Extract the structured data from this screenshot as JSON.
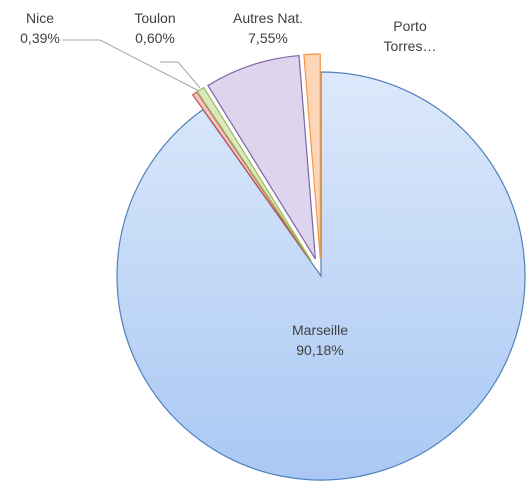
{
  "chart_data": {
    "type": "pie",
    "categories": [
      "Marseille",
      "Nice",
      "Toulon",
      "Autres Nat.",
      "Porto Torres…"
    ],
    "values": [
      90.18,
      0.39,
      0.6,
      7.55,
      1.28
    ],
    "value_labels": [
      "90,18%",
      "0,39%",
      "0,60%",
      "7,55%",
      null
    ],
    "colors": [
      "#c6dbf8",
      "#f4c7c6",
      "#dbe8c1",
      "#ddd4ee",
      "#fcd6b6"
    ],
    "strokes": [
      "#4f81bd",
      "#c0504d",
      "#9bbb59",
      "#8064a2",
      "#f79646"
    ]
  }
}
